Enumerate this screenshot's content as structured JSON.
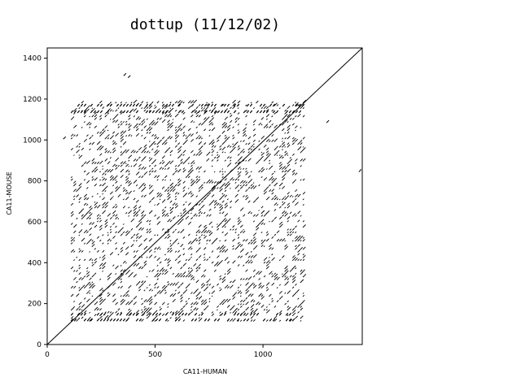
{
  "chart_data": {
    "type": "scatter",
    "title": "dottup (11/12/02)",
    "xlabel": "CA11-HUMAN",
    "ylabel": "CA11-MOUSE",
    "xlim": [
      0,
      1460
    ],
    "ylim": [
      0,
      1450
    ],
    "x_ticks": [
      0,
      500,
      1000
    ],
    "x_tick_labels": [
      "0",
      "500",
      "1000"
    ],
    "y_ticks": [
      0,
      200,
      400,
      600,
      800,
      1000,
      1200,
      1400
    ],
    "y_tick_labels": [
      "0",
      "200",
      "400",
      "600",
      "800",
      "1000",
      "1200",
      "1400"
    ],
    "grid": false,
    "legend": "none",
    "series": [
      {
        "kind": "main-diagonal",
        "points": [
          [
            0,
            0
          ],
          [
            1460,
            1450
          ]
        ]
      },
      {
        "kind": "repeat-block",
        "x_range": [
          110,
          1190
        ],
        "y_range": [
          110,
          1180
        ]
      },
      {
        "kind": "isolated-matches",
        "points": [
          [
            360,
            1320
          ],
          [
            380,
            1310
          ],
          [
            1300,
            1090
          ],
          [
            1450,
            850
          ],
          [
            80,
            1010
          ]
        ]
      }
    ],
    "colors": {
      "background": "#ffffff",
      "ink": "#000000"
    }
  }
}
